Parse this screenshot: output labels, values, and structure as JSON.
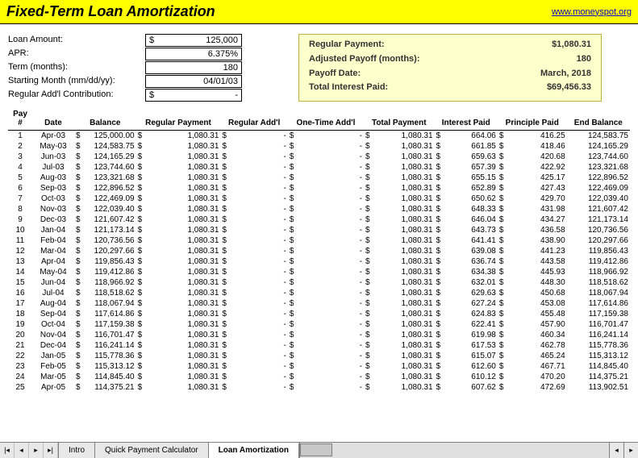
{
  "header": {
    "title": "Fixed-Term Loan Amortization",
    "link_text": "www.moneyspot.org",
    "bg_color": "#ffff00"
  },
  "inputs": {
    "loan_amount_label": "Loan Amount:",
    "loan_amount_value": "125,000",
    "apr_label": "APR:",
    "apr_value": "6.375%",
    "term_label": "Term (months):",
    "term_value": "180",
    "start_month_label": "Starting Month (mm/dd/yy):",
    "start_month_value": "04/01/03",
    "addl_label": "Regular Add'l Contribution:",
    "addl_value": "-"
  },
  "payoff": {
    "bg_color": "#ffffcc",
    "regular_payment_label": "Regular Payment:",
    "regular_payment_value": "$1,080.31",
    "adjusted_payoff_label": "Adjusted Payoff (months):",
    "adjusted_payoff_value": "180",
    "payoff_date_label": "Payoff Date:",
    "payoff_date_value": "March, 2018",
    "total_interest_label": "Total Interest Paid:",
    "total_interest_value": "$69,456.33"
  },
  "table": {
    "headers": {
      "pay": "Pay #",
      "date": "Date",
      "balance": "Balance",
      "reg_payment": "Regular Payment",
      "reg_addl": "Regular Add'l",
      "one_time": "One-Time Add'l",
      "total_payment": "Total Payment",
      "interest": "Interest Paid",
      "principle": "Principle Paid",
      "end_balance": "End Balance"
    },
    "rows": [
      {
        "pay": 1,
        "date": "Apr-03",
        "balance": "125,000.00",
        "reg": "1,080.31",
        "addl": "-",
        "ot": "-",
        "total": "1,080.31",
        "int": "664.06",
        "prin": "416.25",
        "end": "124,583.75"
      },
      {
        "pay": 2,
        "date": "May-03",
        "balance": "124,583.75",
        "reg": "1,080.31",
        "addl": "-",
        "ot": "-",
        "total": "1,080.31",
        "int": "661.85",
        "prin": "418.46",
        "end": "124,165.29"
      },
      {
        "pay": 3,
        "date": "Jun-03",
        "balance": "124,165.29",
        "reg": "1,080.31",
        "addl": "-",
        "ot": "-",
        "total": "1,080.31",
        "int": "659.63",
        "prin": "420.68",
        "end": "123,744.60"
      },
      {
        "pay": 4,
        "date": "Jul-03",
        "balance": "123,744.60",
        "reg": "1,080.31",
        "addl": "-",
        "ot": "-",
        "total": "1,080.31",
        "int": "657.39",
        "prin": "422.92",
        "end": "123,321.68"
      },
      {
        "pay": 5,
        "date": "Aug-03",
        "balance": "123,321.68",
        "reg": "1,080.31",
        "addl": "-",
        "ot": "-",
        "total": "1,080.31",
        "int": "655.15",
        "prin": "425.17",
        "end": "122,896.52"
      },
      {
        "pay": 6,
        "date": "Sep-03",
        "balance": "122,896.52",
        "reg": "1,080.31",
        "addl": "-",
        "ot": "-",
        "total": "1,080.31",
        "int": "652.89",
        "prin": "427.43",
        "end": "122,469.09"
      },
      {
        "pay": 7,
        "date": "Oct-03",
        "balance": "122,469.09",
        "reg": "1,080.31",
        "addl": "-",
        "ot": "-",
        "total": "1,080.31",
        "int": "650.62",
        "prin": "429.70",
        "end": "122,039.40"
      },
      {
        "pay": 8,
        "date": "Nov-03",
        "balance": "122,039.40",
        "reg": "1,080.31",
        "addl": "-",
        "ot": "-",
        "total": "1,080.31",
        "int": "648.33",
        "prin": "431.98",
        "end": "121,607.42"
      },
      {
        "pay": 9,
        "date": "Dec-03",
        "balance": "121,607.42",
        "reg": "1,080.31",
        "addl": "-",
        "ot": "-",
        "total": "1,080.31",
        "int": "646.04",
        "prin": "434.27",
        "end": "121,173.14"
      },
      {
        "pay": 10,
        "date": "Jan-04",
        "balance": "121,173.14",
        "reg": "1,080.31",
        "addl": "-",
        "ot": "-",
        "total": "1,080.31",
        "int": "643.73",
        "prin": "436.58",
        "end": "120,736.56"
      },
      {
        "pay": 11,
        "date": "Feb-04",
        "balance": "120,736.56",
        "reg": "1,080.31",
        "addl": "-",
        "ot": "-",
        "total": "1,080.31",
        "int": "641.41",
        "prin": "438.90",
        "end": "120,297.66"
      },
      {
        "pay": 12,
        "date": "Mar-04",
        "balance": "120,297.66",
        "reg": "1,080.31",
        "addl": "-",
        "ot": "-",
        "total": "1,080.31",
        "int": "639.08",
        "prin": "441.23",
        "end": "119,856.43"
      },
      {
        "pay": 13,
        "date": "Apr-04",
        "balance": "119,856.43",
        "reg": "1,080.31",
        "addl": "-",
        "ot": "-",
        "total": "1,080.31",
        "int": "636.74",
        "prin": "443.58",
        "end": "119,412.86"
      },
      {
        "pay": 14,
        "date": "May-04",
        "balance": "119,412.86",
        "reg": "1,080.31",
        "addl": "-",
        "ot": "-",
        "total": "1,080.31",
        "int": "634.38",
        "prin": "445.93",
        "end": "118,966.92"
      },
      {
        "pay": 15,
        "date": "Jun-04",
        "balance": "118,966.92",
        "reg": "1,080.31",
        "addl": "-",
        "ot": "-",
        "total": "1,080.31",
        "int": "632.01",
        "prin": "448.30",
        "end": "118,518.62"
      },
      {
        "pay": 16,
        "date": "Jul-04",
        "balance": "118,518.62",
        "reg": "1,080.31",
        "addl": "-",
        "ot": "-",
        "total": "1,080.31",
        "int": "629.63",
        "prin": "450.68",
        "end": "118,067.94"
      },
      {
        "pay": 17,
        "date": "Aug-04",
        "balance": "118,067.94",
        "reg": "1,080.31",
        "addl": "-",
        "ot": "-",
        "total": "1,080.31",
        "int": "627.24",
        "prin": "453.08",
        "end": "117,614.86"
      },
      {
        "pay": 18,
        "date": "Sep-04",
        "balance": "117,614.86",
        "reg": "1,080.31",
        "addl": "-",
        "ot": "-",
        "total": "1,080.31",
        "int": "624.83",
        "prin": "455.48",
        "end": "117,159.38"
      },
      {
        "pay": 19,
        "date": "Oct-04",
        "balance": "117,159.38",
        "reg": "1,080.31",
        "addl": "-",
        "ot": "-",
        "total": "1,080.31",
        "int": "622.41",
        "prin": "457.90",
        "end": "116,701.47"
      },
      {
        "pay": 20,
        "date": "Nov-04",
        "balance": "116,701.47",
        "reg": "1,080.31",
        "addl": "-",
        "ot": "-",
        "total": "1,080.31",
        "int": "619.98",
        "prin": "460.34",
        "end": "116,241.14"
      },
      {
        "pay": 21,
        "date": "Dec-04",
        "balance": "116,241.14",
        "reg": "1,080.31",
        "addl": "-",
        "ot": "-",
        "total": "1,080.31",
        "int": "617.53",
        "prin": "462.78",
        "end": "115,778.36"
      },
      {
        "pay": 22,
        "date": "Jan-05",
        "balance": "115,778.36",
        "reg": "1,080.31",
        "addl": "-",
        "ot": "-",
        "total": "1,080.31",
        "int": "615.07",
        "prin": "465.24",
        "end": "115,313.12"
      },
      {
        "pay": 23,
        "date": "Feb-05",
        "balance": "115,313.12",
        "reg": "1,080.31",
        "addl": "-",
        "ot": "-",
        "total": "1,080.31",
        "int": "612.60",
        "prin": "467.71",
        "end": "114,845.40"
      },
      {
        "pay": 24,
        "date": "Mar-05",
        "balance": "114,845.40",
        "reg": "1,080.31",
        "addl": "-",
        "ot": "-",
        "total": "1,080.31",
        "int": "610.12",
        "prin": "470.20",
        "end": "114,375.21"
      },
      {
        "pay": 25,
        "date": "Apr-05",
        "balance": "114,375.21",
        "reg": "1,080.31",
        "addl": "-",
        "ot": "-",
        "total": "1,080.31",
        "int": "607.62",
        "prin": "472.69",
        "end": "113,902.51"
      }
    ]
  },
  "tabs": {
    "tab1": "Intro",
    "tab2": "Quick Payment Calculator",
    "tab3": "Loan Amortization"
  }
}
